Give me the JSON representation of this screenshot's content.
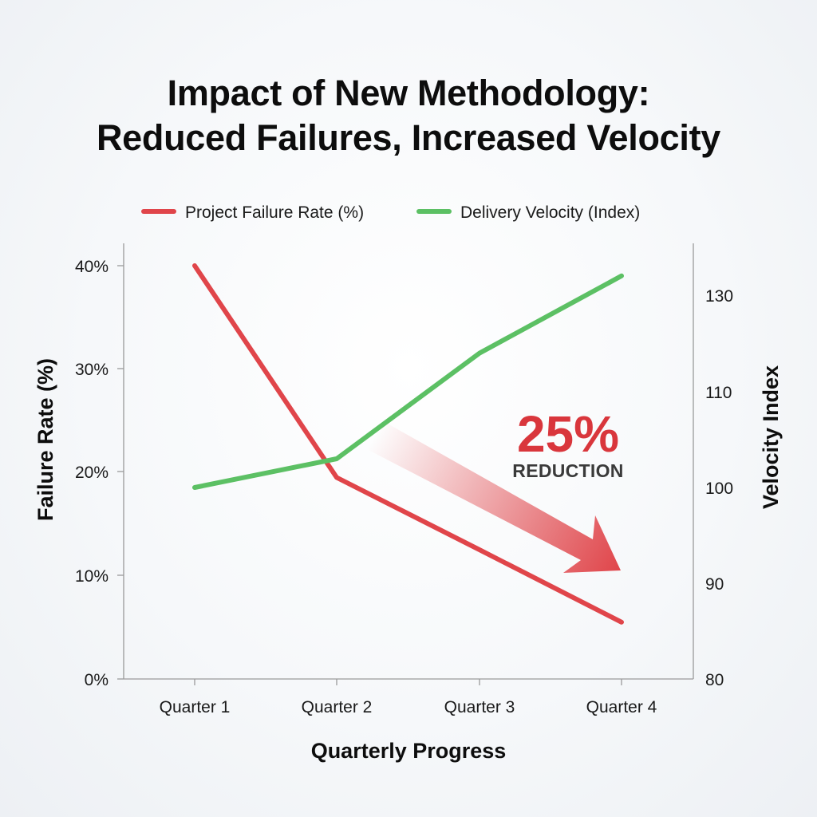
{
  "chart_data": {
    "type": "line",
    "title": "Impact of New Methodology: Reduced Failures, Increased Velocity",
    "title_lines": [
      "Impact of New Methodology:",
      "Reduced Failures, Increased Velocity"
    ],
    "xlabel": "Quarterly Progress",
    "ylabel_left": "Failure Rate (%)",
    "ylabel_right": "Velocity Index",
    "categories": [
      "Quarter 1",
      "Quarter 2",
      "Quarter 3",
      "Quarter 4"
    ],
    "y_left_ticks": [
      "0%",
      "10%",
      "20%",
      "30%",
      "40%"
    ],
    "y_left_lim": [
      0,
      40
    ],
    "y_right_ticks": [
      "80",
      "90",
      "100",
      "110",
      "130"
    ],
    "y_right_tick_values": [
      80,
      90,
      100,
      110,
      130
    ],
    "series": [
      {
        "name": "Project Failure Rate (%)",
        "axis": "left",
        "color": "#e0454a",
        "values": [
          40,
          19.5,
          12.5,
          5.5
        ]
      },
      {
        "name": "Delivery Velocity (Index)",
        "axis": "right",
        "color": "#5cc064",
        "values": [
          100.0,
          103.0,
          118.0,
          134.0
        ]
      }
    ],
    "legend_position": "top",
    "grid": false,
    "annotation": {
      "value": "25%",
      "label": "REDUCTION",
      "color": "#d9363c"
    }
  }
}
